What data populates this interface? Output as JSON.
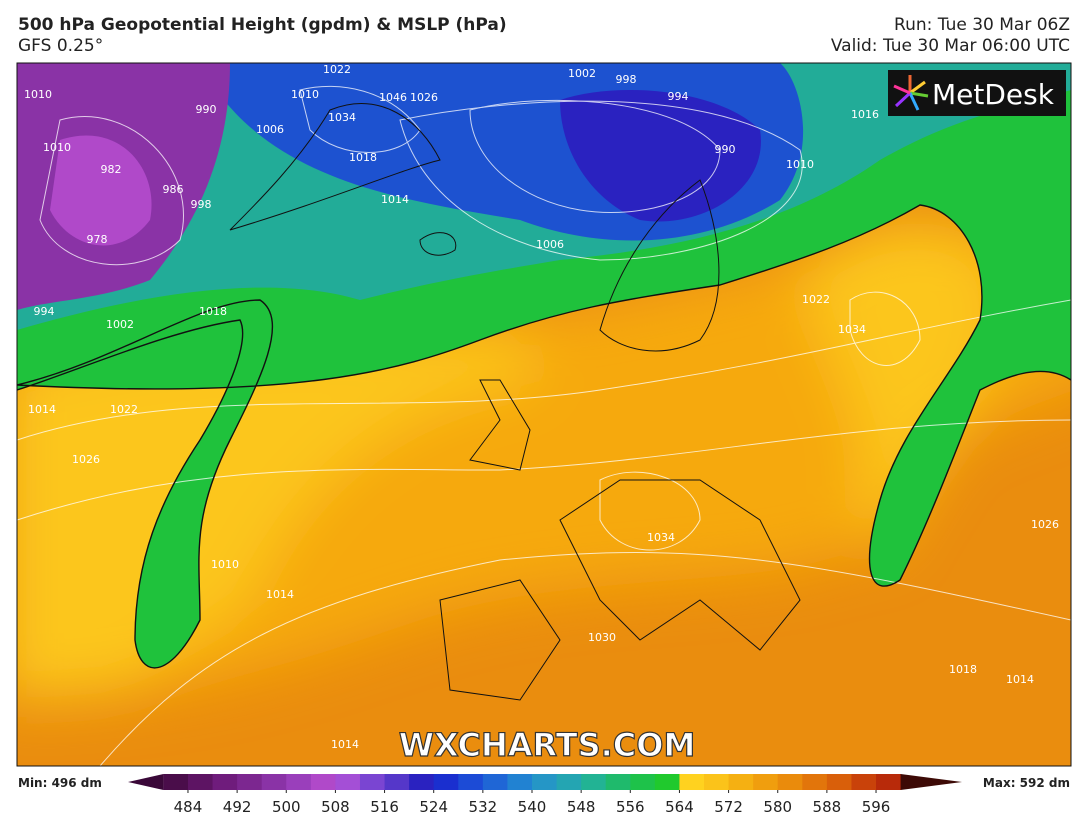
{
  "header": {
    "title": "500 hPa Geopotential Height (gpdm) & MSLP (hPa)",
    "subtitle": "GFS 0.25°",
    "run": "Run: Tue 30 Mar 06Z",
    "valid": "Valid: Tue 30 Mar 06:00 UTC"
  },
  "logo": "MetDesk",
  "watermark": "WXCHARTS.COM",
  "isobar_labels": [
    1010,
    1010,
    990,
    982,
    986,
    978,
    994,
    998,
    1002,
    1006,
    1010,
    1022,
    1034,
    1046,
    1026,
    1018,
    1014,
    1002,
    998,
    994,
    990,
    1006,
    1010,
    1016,
    1022,
    1034,
    1014,
    1022,
    1026,
    1018,
    1014,
    1010,
    1034,
    1030,
    1026,
    1018,
    1014,
    1014
  ],
  "colorbar": {
    "min_label": "Min: 496 dm",
    "max_label": "Max: 592 dm",
    "ticks": [
      484,
      492,
      500,
      508,
      516,
      524,
      532,
      540,
      548,
      556,
      564,
      572,
      580,
      588,
      596
    ],
    "lim": [
      480,
      600
    ],
    "colors": [
      "#4a0d4a",
      "#5d1463",
      "#6f1c7c",
      "#7c2790",
      "#8a33a6",
      "#9a3fbb",
      "#b049c9",
      "#a44fd6",
      "#7a45d2",
      "#5537c9",
      "#2a22c0",
      "#1a2fcf",
      "#1c4bd6",
      "#1f66d6",
      "#2182d2",
      "#2596c6",
      "#24a5b2",
      "#22b394",
      "#1fba6c",
      "#1ec24a",
      "#20c92d",
      "#ffd21f",
      "#fbc31a",
      "#f5b012",
      "#f09e0e",
      "#ea8b0c",
      "#e2750b",
      "#d95f0a",
      "#c9420a",
      "#b82a0a"
    ],
    "arrow_colors": [
      "#3a0838",
      "#3d0a06"
    ]
  }
}
